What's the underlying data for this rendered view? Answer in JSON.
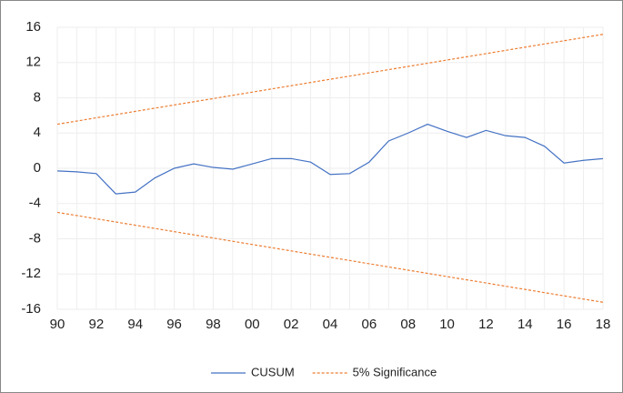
{
  "chart_data": {
    "type": "line",
    "categories": [
      "90",
      null,
      "92",
      null,
      "94",
      null,
      "96",
      null,
      "98",
      null,
      "00",
      null,
      "02",
      null,
      "04",
      null,
      "06",
      null,
      "08",
      null,
      "10",
      null,
      "12",
      null,
      "14",
      null,
      "16",
      null,
      "18"
    ],
    "series": [
      {
        "name": "CUSUM",
        "color": "#4472c4",
        "dashed": false,
        "values": [
          -0.3,
          -0.4,
          -0.6,
          -2.9,
          -2.7,
          -1.1,
          0.0,
          0.5,
          0.1,
          -0.1,
          0.5,
          1.1,
          1.1,
          0.7,
          -0.7,
          -0.6,
          0.7,
          3.1,
          4.0,
          5.0,
          4.2,
          3.5,
          4.3,
          3.7,
          3.5,
          2.5,
          0.6,
          0.9,
          1.1
        ]
      },
      {
        "name": "5% Significance",
        "color": "#ed7d31",
        "dashed": true,
        "values": [
          5.0,
          5.36,
          5.73,
          6.09,
          6.46,
          6.82,
          7.19,
          7.55,
          7.91,
          8.28,
          8.64,
          9.01,
          9.37,
          9.74,
          10.1,
          10.46,
          10.83,
          11.19,
          11.56,
          11.92,
          12.29,
          12.65,
          13.01,
          13.38,
          13.74,
          14.11,
          14.47,
          14.84,
          15.2
        ]
      },
      {
        "color": "#ed7d31",
        "dashed": true,
        "values": [
          -5.0,
          -5.36,
          -5.73,
          -6.09,
          -6.46,
          -6.82,
          -7.19,
          -7.55,
          -7.91,
          -8.28,
          -8.64,
          -9.01,
          -9.37,
          -9.74,
          -10.1,
          -10.46,
          -10.83,
          -11.19,
          -11.56,
          -11.92,
          -12.29,
          -12.65,
          -13.01,
          -13.38,
          -13.74,
          -14.11,
          -14.47,
          -14.84,
          -15.2
        ]
      }
    ],
    "ylim": [
      -16,
      16
    ],
    "yticks": [
      -16,
      -12,
      -8,
      -4,
      0,
      4,
      8,
      12,
      16
    ],
    "grid": true,
    "legend": "bottom"
  }
}
